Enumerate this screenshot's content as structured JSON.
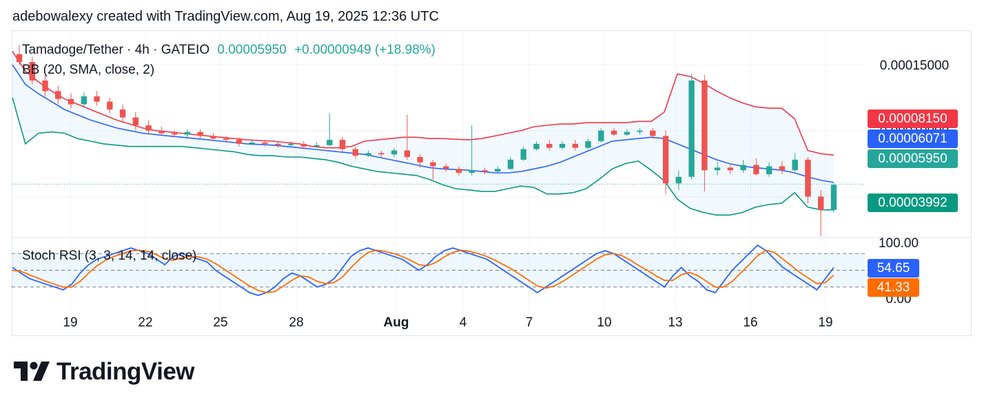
{
  "header": {
    "attribution": "adebowalexy created with TradingView.com, Aug 19, 2025 12:36 UTC"
  },
  "legend": {
    "symbol": "Tamadoge/Tether · 4h · GATEIO",
    "price": "0.00005950",
    "change": "+0.00000949 (+18.98%)",
    "indicator": "BB (20, SMA, close, 2)"
  },
  "oscillator": {
    "title": "Stoch RSI (3, 3, 14, 14, close)"
  },
  "price_labels": [
    {
      "text": "0.00008150",
      "color": "#f23645"
    },
    {
      "text": "0.00006071",
      "color": "#2962ff"
    },
    {
      "text": "0.00005950",
      "color": "#26a69a"
    },
    {
      "text": "0.00003992",
      "color": "#089981"
    }
  ],
  "osc_labels": [
    {
      "text": "54.65",
      "color": "#2962ff"
    },
    {
      "text": "41.33",
      "color": "#ff6d00"
    }
  ],
  "colors": {
    "up": "#26a69a",
    "down": "#ef5350",
    "bb_upper": "#f23645",
    "bb_middle": "#2962ff",
    "bb_lower": "#089981",
    "k": "#2962ff",
    "d": "#ff6d00"
  },
  "logo": {
    "text": "TradingView"
  },
  "chart_data": [
    {
      "type": "candlestick",
      "title": "Tamadoge/Tether · 4h · GATEIO",
      "y_ticks": [
        "0.00015000",
        "0.00010000"
      ],
      "ylim": [
        2e-05,
        0.000175
      ],
      "x_ticks": [
        "19",
        "22",
        "25",
        "28",
        "Aug",
        "4",
        "7",
        "10",
        "13",
        "16",
        "19"
      ],
      "last_price": 5.95e-05,
      "bb_upper": [
        0.00016,
        0.000145,
        0.000137,
        0.00013,
        0.000124,
        0.00012,
        0.000116,
        0.000112,
        0.000108,
        0.000105,
        0.000102,
        0.0001,
        9.9e-05,
        9.8e-05,
        9.7e-05,
        9.6e-05,
        9.5e-05,
        9.4e-05,
        9.3e-05,
        9.25e-05,
        9.2e-05,
        9.1e-05,
        9e-05,
        8.8e-05,
        8.7e-05,
        8.7e-05,
        8.8e-05,
        9.2e-05,
        9.3e-05,
        9.4e-05,
        9.5e-05,
        9.5e-05,
        9.4e-05,
        9.4e-05,
        9.35e-05,
        9.3e-05,
        9.4e-05,
        9.6e-05,
        9.8e-05,
        0.0001,
        0.000103,
        0.000104,
        0.000105,
        0.000105,
        0.000106,
        0.000106,
        0.000106,
        0.000106,
        0.000107,
        0.000107,
        0.000114,
        0.000143,
        0.000141,
        0.000136,
        0.00013,
        0.000125,
        0.000121,
        0.000118,
        0.000117,
        0.000117,
        0.000109,
        8.5e-05,
        8.25e-05,
        8.15e-05
      ],
      "bb_middle": [
        0.00015,
        0.000135,
        0.000128,
        0.000122,
        0.000116,
        0.000112,
        0.000108,
        0.000105,
        0.000102,
        0.0001,
        9.8e-05,
        9.7e-05,
        9.6e-05,
        9.5e-05,
        9.4e-05,
        9.3e-05,
        9.2e-05,
        9.1e-05,
        9e-05,
        8.95e-05,
        8.9e-05,
        8.8e-05,
        8.7e-05,
        8.6e-05,
        8.5e-05,
        8.4e-05,
        8.3e-05,
        8.2e-05,
        8e-05,
        7.8e-05,
        7.6e-05,
        7.4e-05,
        7.2e-05,
        7.1e-05,
        7.05e-05,
        7e-05,
        6.9e-05,
        6.8e-05,
        6.8e-05,
        6.9e-05,
        7.1e-05,
        7.3e-05,
        7.6e-05,
        8e-05,
        8.4e-05,
        8.8e-05,
        9.2e-05,
        9.3e-05,
        9.4e-05,
        9.5e-05,
        9.4e-05,
        9e-05,
        8.6e-05,
        8.2e-05,
        7.8e-05,
        7.5e-05,
        7.3e-05,
        7.2e-05,
        7.1e-05,
        7e-05,
        6.8e-05,
        6.5e-05,
        6.25e-05,
        6.071e-05
      ],
      "bb_lower": [
        0.000125,
        9e-05,
        9.8e-05,
        9.9e-05,
        9.8e-05,
        9.4e-05,
        9.2e-05,
        9e-05,
        8.9e-05,
        8.8e-05,
        8.8e-05,
        8.8e-05,
        8.8e-05,
        8.8e-05,
        8.7e-05,
        8.6e-05,
        8.5e-05,
        8.4e-05,
        8.2e-05,
        8.1e-05,
        8.1e-05,
        8e-05,
        8e-05,
        7.9e-05,
        7.8e-05,
        7.6e-05,
        7.3e-05,
        7.1e-05,
        6.9e-05,
        6.8e-05,
        6.7e-05,
        6.6e-05,
        6.3e-05,
        5.9e-05,
        5.6e-05,
        5.5e-05,
        5.4e-05,
        5.4e-05,
        5.6e-05,
        5.8e-05,
        5.7e-05,
        5.2e-05,
        5.2e-05,
        5.3e-05,
        5.6e-05,
        6.3e-05,
        7.1e-05,
        7.5e-05,
        7.7e-05,
        7e-05,
        6.2e-05,
        4.8e-05,
        4.1e-05,
        3.8e-05,
        3.6e-05,
        3.6e-05,
        3.8e-05,
        4.2e-05,
        4.4e-05,
        4.5e-05,
        5.3e-05,
        4.2e-05,
        4e-05,
        3.992e-05
      ],
      "candles": [
        [
          0.000158,
          0.000152,
          0.000165,
          0.00015
        ],
        [
          0.000152,
          0.000138,
          0.000156,
          0.000135
        ],
        [
          0.000138,
          0.00013,
          0.000142,
          0.000126
        ],
        [
          0.00013,
          0.000124,
          0.000134,
          0.00012
        ],
        [
          0.000124,
          0.00012,
          0.000128,
          0.000117
        ],
        [
          0.00012,
          0.000126,
          0.000129,
          0.000118
        ],
        [
          0.000126,
          0.000122,
          0.00013,
          0.000119
        ],
        [
          0.000122,
          0.000116,
          0.000125,
          0.000113
        ],
        [
          0.000116,
          0.00011,
          0.00012,
          0.000106
        ],
        [
          0.00011,
          0.000104,
          0.000114,
          0.0001
        ],
        [
          0.000104,
          0.0001,
          0.000108,
          9.7e-05
        ],
        [
          0.0001,
          9.8e-05,
          0.000103,
          9.6e-05
        ],
        [
          9.8e-05,
          9.7e-05,
          0.0001,
          9.5e-05
        ],
        [
          9.7e-05,
          9.9e-05,
          0.000101,
          9.5e-05
        ],
        [
          9.9e-05,
          9.6e-05,
          0.000101,
          9.4e-05
        ],
        [
          9.6e-05,
          9.4e-05,
          9.8e-05,
          9.2e-05
        ],
        [
          9.4e-05,
          9.3e-05,
          9.6e-05,
          9.1e-05
        ],
        [
          9.3e-05,
          9e-05,
          9.5e-05,
          8.8e-05
        ],
        [
          9e-05,
          9.1e-05,
          9.3e-05,
          8.9e-05
        ],
        [
          9.1e-05,
          9e-05,
          9.3e-05,
          8.8e-05
        ],
        [
          9e-05,
          8.9e-05,
          9.2e-05,
          8.7e-05
        ],
        [
          8.9e-05,
          9e-05,
          9.2e-05,
          8.8e-05
        ],
        [
          9e-05,
          8.8e-05,
          9.2e-05,
          8.6e-05
        ],
        [
          8.8e-05,
          8.9e-05,
          9.1e-05,
          8.7e-05
        ],
        [
          8.9e-05,
          9.3e-05,
          0.000113,
          8.8e-05
        ],
        [
          9.3e-05,
          8.6e-05,
          9.5e-05,
          8.4e-05
        ],
        [
          8.6e-05,
          8.1e-05,
          8.8e-05,
          7.9e-05
        ],
        [
          8.1e-05,
          8.3e-05,
          8.5e-05,
          8e-05
        ],
        [
          8.3e-05,
          8.2e-05,
          8.5e-05,
          8e-05
        ],
        [
          8.2e-05,
          8.5e-05,
          8.7e-05,
          8e-05
        ],
        [
          8.5e-05,
          8e-05,
          0.000112,
          7.8e-05
        ],
        [
          8e-05,
          7.6e-05,
          8.2e-05,
          7.2e-05
        ],
        [
          7.6e-05,
          7.3e-05,
          7.8e-05,
          6.3e-05
        ],
        [
          7.3e-05,
          7.1e-05,
          7.5e-05,
          6.9e-05
        ],
        [
          7.1e-05,
          6.8e-05,
          7.3e-05,
          6.6e-05
        ],
        [
          6.8e-05,
          7e-05,
          0.000104,
          6.6e-05
        ],
        [
          7e-05,
          6.9e-05,
          7.2e-05,
          6.7e-05
        ],
        [
          6.9e-05,
          7.1e-05,
          7.3e-05,
          6.8e-05
        ],
        [
          7.1e-05,
          7.8e-05,
          8e-05,
          7e-05
        ],
        [
          7.8e-05,
          8.6e-05,
          8.8e-05,
          7.7e-05
        ],
        [
          8.6e-05,
          9e-05,
          9.2e-05,
          8.5e-05
        ],
        [
          9e-05,
          8.7e-05,
          9.3e-05,
          8.5e-05
        ],
        [
          8.7e-05,
          9e-05,
          9.2e-05,
          8.6e-05
        ],
        [
          9e-05,
          8.7e-05,
          9.3e-05,
          8.5e-05
        ],
        [
          8.7e-05,
          9.2e-05,
          9.4e-05,
          8.6e-05
        ],
        [
          9.2e-05,
          0.0001,
          0.000102,
          9.1e-05
        ],
        [
          0.0001,
          9.7e-05,
          0.000102,
          9.6e-05
        ],
        [
          9.7e-05,
          9.9e-05,
          0.000101,
          9.6e-05
        ],
        [
          9.9e-05,
          0.0001,
          0.000102,
          9.7e-05
        ],
        [
          0.0001,
          9.6e-05,
          0.000102,
          9.4e-05
        ],
        [
          9.6e-05,
          6e-05,
          0.0001,
          5.2e-05
        ],
        [
          6e-05,
          6.5e-05,
          7e-05,
          5.5e-05
        ],
        [
          6.5e-05,
          0.000138,
          0.000143,
          6.3e-05
        ],
        [
          0.000138,
          7e-05,
          0.000142,
          5.4e-05
        ],
        [
          7e-05,
          7.2e-05,
          7.6e-05,
          6.6e-05
        ],
        [
          7.2e-05,
          7e-05,
          7.5e-05,
          6.7e-05
        ],
        [
          7e-05,
          7.4e-05,
          7.8e-05,
          6.8e-05
        ],
        [
          7.4e-05,
          6.7e-05,
          7.9e-05,
          6.6e-05
        ],
        [
          6.7e-05,
          7.3e-05,
          7.6e-05,
          6.5e-05
        ],
        [
          7.3e-05,
          7e-05,
          7.7e-05,
          6.7e-05
        ],
        [
          7e-05,
          7.8e-05,
          8.3e-05,
          6.9e-05
        ],
        [
          7.8e-05,
          5e-05,
          8e-05,
          4.5e-05
        ],
        [
          5e-05,
          4e-05,
          5.5e-05,
          2e-05
        ],
        [
          4e-05,
          5.9e-05,
          6e-05,
          3.8e-05
        ]
      ]
    },
    {
      "type": "line",
      "title": "Stoch RSI (3, 3, 14, 14, close)",
      "y_ticks": [
        "100.00",
        "0.00"
      ],
      "ylim": [
        0,
        100
      ],
      "bands": [
        80,
        50,
        20
      ],
      "series": [
        {
          "name": "K",
          "values": [
            55,
            45,
            35,
            30,
            25,
            20,
            15,
            25,
            45,
            60,
            70,
            75,
            80,
            85,
            90,
            85,
            80,
            70,
            60,
            75,
            80,
            75,
            70,
            65,
            50,
            40,
            30,
            20,
            10,
            5,
            10,
            20,
            35,
            45,
            40,
            30,
            20,
            25,
            35,
            55,
            75,
            85,
            90,
            85,
            80,
            75,
            70,
            60,
            50,
            60,
            75,
            85,
            90,
            85,
            80,
            75,
            70,
            60,
            50,
            40,
            30,
            20,
            10,
            20,
            30,
            40,
            50,
            60,
            70,
            80,
            85,
            80,
            70,
            60,
            50,
            40,
            30,
            20,
            40,
            55,
            40,
            30,
            15,
            10,
            30,
            50,
            65,
            80,
            95,
            85,
            70,
            55,
            45,
            35,
            25,
            15,
            35,
            55
          ]
        },
        {
          "name": "D",
          "values": [
            50,
            48,
            42,
            36,
            30,
            25,
            20,
            20,
            30,
            45,
            58,
            68,
            75,
            80,
            85,
            86,
            84,
            78,
            70,
            68,
            72,
            75,
            74,
            70,
            62,
            52,
            42,
            32,
            22,
            14,
            10,
            12,
            22,
            32,
            40,
            38,
            30,
            26,
            28,
            38,
            55,
            70,
            82,
            86,
            84,
            80,
            75,
            68,
            60,
            58,
            64,
            74,
            82,
            86,
            84,
            80,
            75,
            68,
            60,
            52,
            42,
            32,
            22,
            18,
            22,
            30,
            40,
            50,
            60,
            70,
            78,
            80,
            76,
            68,
            58,
            50,
            40,
            32,
            32,
            42,
            46,
            40,
            30,
            20,
            20,
            30,
            45,
            60,
            76,
            86,
            82,
            70,
            58,
            46,
            36,
            26,
            28,
            41.33
          ]
        }
      ]
    }
  ]
}
